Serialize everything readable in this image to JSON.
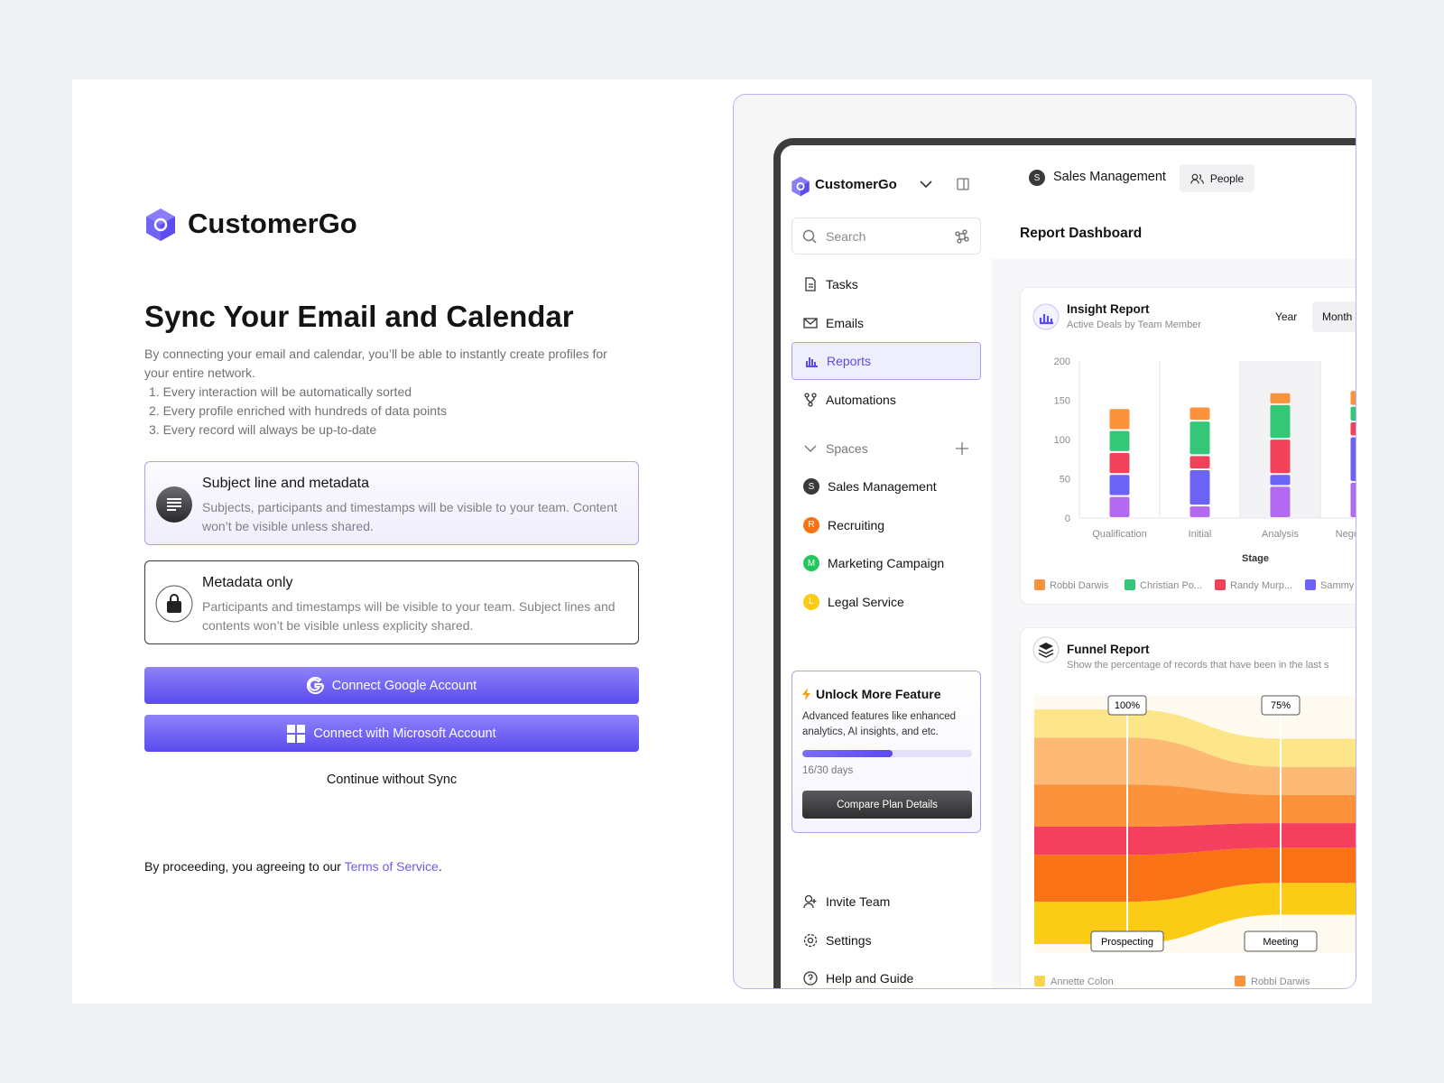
{
  "brand": "CustomerGo",
  "heading": "Sync Your Email and Calendar",
  "intro": "By connecting your email and calendar, you’ll be able to instantly create profiles for your entire network.",
  "benefits": [
    "1. Every interaction will be automatically sorted",
    "2. Every profile enriched with hundreds of data points",
    "3. Every record will always be up-to-date"
  ],
  "options": [
    {
      "title": "Subject line and metadata",
      "description": "Subjects, participants and timestamps will be visible to your team. Content won’t be visible unless shared."
    },
    {
      "title": "Metadata only",
      "description": "Participants and timestamps will be visible to your team. Subject lines and contents won’t be visible unless explicity shared."
    }
  ],
  "actions": {
    "google": "Connect Google Account",
    "microsoft": "Connect with Microsoft Account",
    "skip": "Continue without Sync"
  },
  "terms": {
    "prefix": "By proceeding, you agreeing to our ",
    "link": "Terms of Service",
    "suffix": "."
  },
  "app": {
    "brand": "CustomerGo",
    "search": "Search",
    "nav": [
      "Tasks",
      "Emails",
      "Reports",
      "Automations"
    ],
    "spaces_label": "Spaces",
    "spaces": [
      {
        "initial": "S",
        "name": "Sales Management",
        "color": "#3a3a3c"
      },
      {
        "initial": "R",
        "name": "Recruiting",
        "color": "#f97316"
      },
      {
        "initial": "M",
        "name": "Marketing Campaign",
        "color": "#22c55e"
      },
      {
        "initial": "L",
        "name": "Legal Service",
        "color": "#facc15"
      }
    ],
    "trial": {
      "title": "Unlock More Feature",
      "text": "Advanced features like enhanced analytics, AI insights, and etc.",
      "label": "16/30 days",
      "used": 16,
      "total": 30,
      "button": "Compare Plan Details"
    },
    "footer_nav": [
      "Invite Team",
      "Settings",
      "Help and Guide"
    ]
  },
  "dashboard": {
    "workspace_initial": "S",
    "workspace": "Sales Management",
    "people": "People",
    "title": "Report Dashboard",
    "insight_report": {
      "title": "Insight Report",
      "subtitle": "Active Deals by Team Member",
      "tabs": [
        "Year",
        "Month"
      ],
      "chart": {
        "type": "bar",
        "stacked": true,
        "categories": [
          "Qualification",
          "Initial",
          "Analysis",
          "Negotiation"
        ],
        "xlabel": "Stage",
        "ylim": [
          0,
          200
        ],
        "yticks": [
          0,
          50,
          100,
          150,
          200
        ],
        "series": [
          {
            "color": "#b36af0",
            "values": [
              28,
              16,
              41,
              46
            ]
          },
          {
            "name": "Sammy",
            "color": "#6b63f5",
            "values": [
              28,
              46,
              15,
              58
            ]
          },
          {
            "name": "Randy Murp...",
            "color": "#f0435a",
            "values": [
              28,
              18,
              45,
              19
            ]
          },
          {
            "name": "Christian Po...",
            "color": "#34c777",
            "values": [
              28,
              44,
              44,
              20
            ]
          },
          {
            "name": "Robbi Darwis",
            "color": "#fb923c",
            "values": [
              28,
              18,
              15,
              20
            ]
          }
        ]
      }
    },
    "funnel": {
      "title": "Funnel Report",
      "subtitle": "Show the percentage of records that have been in the last s",
      "stages": [
        {
          "value": 100,
          "label": "100%",
          "name": "Prospecting"
        },
        {
          "value": 75,
          "label": "75%",
          "name": "Meeting"
        }
      ],
      "legend": [
        {
          "name": "Annette Colon",
          "color": "#fcd34d"
        },
        {
          "name": "Robbi Darwis",
          "color": "#fb923c"
        }
      ]
    }
  }
}
